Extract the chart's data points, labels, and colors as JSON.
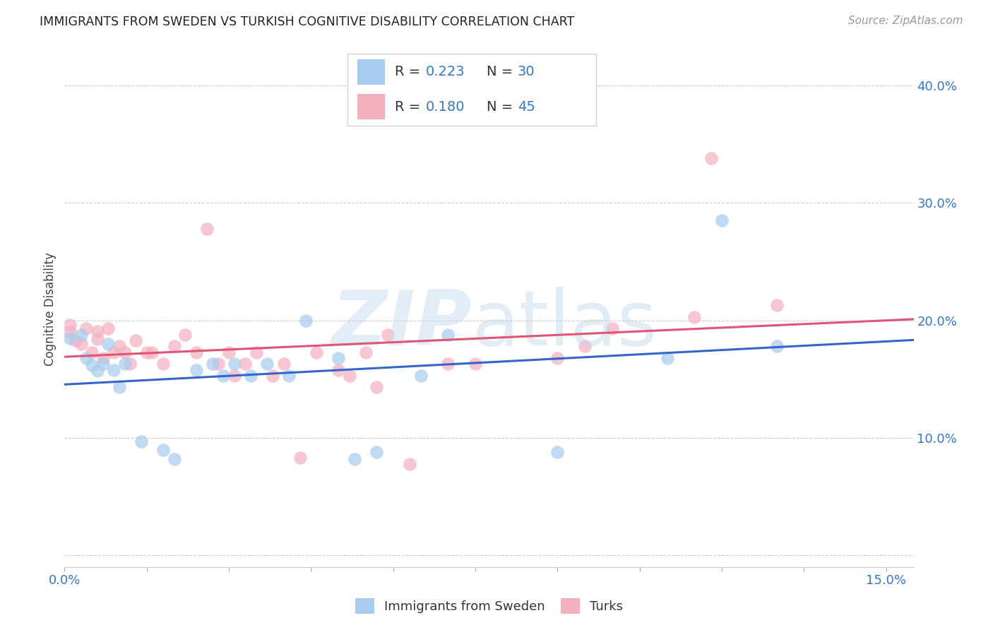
{
  "title": "IMMIGRANTS FROM SWEDEN VS TURKISH COGNITIVE DISABILITY CORRELATION CHART",
  "source": "Source: ZipAtlas.com",
  "ylabel": "Cognitive Disability",
  "xlim": [
    0.0,
    0.155
  ],
  "ylim": [
    -0.01,
    0.43
  ],
  "color_sweden": "#a8ccee",
  "color_turks": "#f5b0c0",
  "line_color_sweden": "#3366cc",
  "line_color_turks": "#e05575",
  "legend_color": "#3377cc",
  "tick_color": "#3377cc",
  "sweden_x": [
    0.001,
    0.003,
    0.004,
    0.005,
    0.006,
    0.007,
    0.008,
    0.009,
    0.01,
    0.011,
    0.014,
    0.018,
    0.02,
    0.024,
    0.027,
    0.029,
    0.031,
    0.034,
    0.037,
    0.041,
    0.044,
    0.05,
    0.053,
    0.057,
    0.065,
    0.07,
    0.09,
    0.11,
    0.12,
    0.13
  ],
  "sweden_y": [
    0.185,
    0.188,
    0.168,
    0.162,
    0.157,
    0.163,
    0.18,
    0.158,
    0.143,
    0.163,
    0.097,
    0.09,
    0.082,
    0.158,
    0.163,
    0.153,
    0.163,
    0.153,
    0.163,
    0.153,
    0.2,
    0.168,
    0.082,
    0.088,
    0.153,
    0.188,
    0.088,
    0.168,
    0.285,
    0.178
  ],
  "turks_x": [
    0.001,
    0.001,
    0.002,
    0.003,
    0.004,
    0.005,
    0.006,
    0.006,
    0.007,
    0.008,
    0.009,
    0.01,
    0.011,
    0.012,
    0.013,
    0.015,
    0.016,
    0.018,
    0.02,
    0.022,
    0.024,
    0.026,
    0.028,
    0.03,
    0.031,
    0.033,
    0.035,
    0.038,
    0.04,
    0.043,
    0.046,
    0.05,
    0.052,
    0.055,
    0.057,
    0.059,
    0.063,
    0.07,
    0.075,
    0.09,
    0.095,
    0.1,
    0.115,
    0.118,
    0.13
  ],
  "turks_y": [
    0.19,
    0.196,
    0.183,
    0.18,
    0.193,
    0.173,
    0.184,
    0.191,
    0.168,
    0.193,
    0.173,
    0.178,
    0.173,
    0.163,
    0.183,
    0.173,
    0.173,
    0.163,
    0.178,
    0.188,
    0.173,
    0.278,
    0.163,
    0.173,
    0.153,
    0.163,
    0.173,
    0.153,
    0.163,
    0.083,
    0.173,
    0.158,
    0.153,
    0.173,
    0.143,
    0.188,
    0.078,
    0.163,
    0.163,
    0.168,
    0.178,
    0.193,
    0.203,
    0.338,
    0.213
  ],
  "scatter_size": 180,
  "scatter_alpha": 0.72
}
